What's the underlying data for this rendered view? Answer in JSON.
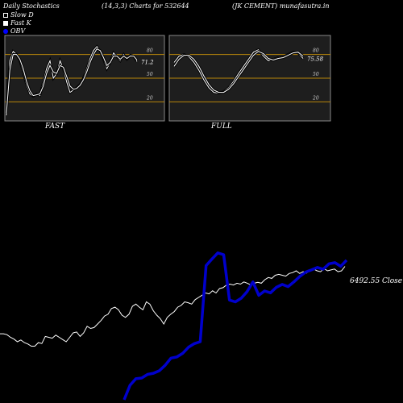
{
  "header": {
    "title": "Daily Stochastics",
    "params": "(14,3,3) Charts for 532644",
    "stock": "(JK CEMENT) munafasutra.in"
  },
  "legend": [
    {
      "label": "Slow  D",
      "icon": "hollow-square-icon"
    },
    {
      "label": "Fast K",
      "icon": "filled-square-icon"
    },
    {
      "label": "OBV",
      "icon": "blue-dot-icon",
      "color": "#0000ff"
    }
  ],
  "colors": {
    "background": "#000000",
    "panel_bg": "#1e1e1e",
    "grid_line": "#b8860b",
    "stoch_line": "#ffffff",
    "obv_line": "#0000cc",
    "price_line": "#ffffff"
  },
  "chart_data": [
    {
      "type": "line",
      "panel": "FAST",
      "ylim": [
        0,
        100
      ],
      "yticks": [
        20,
        50,
        80
      ],
      "last_value_label": "71.2",
      "series": [
        {
          "name": "Fast K",
          "values": [
            3,
            72,
            84,
            80,
            72,
            58,
            42,
            30,
            27,
            30,
            28,
            45,
            62,
            72,
            50,
            56,
            72,
            62,
            45,
            32,
            35,
            38,
            42,
            50,
            62,
            75,
            85,
            90,
            84,
            74,
            62,
            70,
            82,
            77,
            72,
            80,
            74,
            79,
            78,
            71
          ]
        },
        {
          "name": "Slow  D",
          "values": [
            6,
            60,
            80,
            80,
            74,
            62,
            46,
            34,
            28,
            29,
            30,
            40,
            56,
            66,
            58,
            56,
            66,
            64,
            52,
            40,
            36,
            37,
            41,
            48,
            58,
            70,
            80,
            87,
            85,
            76,
            66,
            70,
            78,
            78,
            74,
            78,
            75,
            78,
            78,
            73
          ]
        }
      ]
    },
    {
      "type": "line",
      "panel": "FULL",
      "ylim": [
        0,
        100
      ],
      "yticks": [
        20,
        50,
        80
      ],
      "last_value_label": "75.58",
      "series": [
        {
          "name": "Fast K",
          "values": [
            70,
            78,
            80,
            77,
            70,
            60,
            48,
            38,
            32,
            31,
            33,
            38,
            46,
            56,
            65,
            74,
            83,
            86,
            78,
            72,
            74,
            76,
            77,
            80,
            83,
            82,
            75
          ]
        },
        {
          "name": "Slow  D",
          "values": [
            65,
            74,
            79,
            79,
            74,
            65,
            53,
            42,
            35,
            32,
            32,
            36,
            43,
            52,
            61,
            70,
            79,
            84,
            81,
            75,
            73,
            75,
            76,
            79,
            82,
            83,
            78
          ]
        }
      ]
    },
    {
      "type": "line",
      "panel": "OBV",
      "last_value_label": "6492.55",
      "close_label": "Close",
      "series": [
        {
          "name": "OBV",
          "values": [
            0,
            40,
            58,
            60,
            70,
            73,
            80,
            95,
            115,
            118,
            128,
            145,
            155,
            160,
            370,
            388,
            405,
            400,
            275,
            270,
            280,
            298,
            325,
            288,
            300,
            295,
            310,
            318,
            312,
            325,
            340,
            352,
            358,
            365,
            360,
            375,
            378,
            368,
            385
          ]
        },
        {
          "name": "Close",
          "values": [
            58,
            58,
            56,
            50,
            46,
            40,
            44,
            38,
            35,
            30,
            30,
            38,
            36,
            52,
            50,
            48,
            55,
            50,
            45,
            40,
            50,
            60,
            62,
            52,
            60,
            75,
            70,
            72,
            80,
            88,
            98,
            102,
            115,
            118,
            112,
            100,
            95,
            102,
            120,
            125,
            118,
            112,
            130,
            125,
            110,
            100,
            92,
            80,
            95,
            102,
            108,
            118,
            122,
            130,
            128,
            125,
            135,
            140,
            145,
            150,
            148,
            155,
            150,
            160,
            162,
            168,
            170,
            168,
            172,
            170,
            175,
            172,
            168,
            172,
            174,
            172,
            180,
            185,
            183,
            190,
            192,
            190,
            188,
            194,
            196,
            200,
            194,
            198,
            195,
            202,
            204,
            200,
            198,
            205,
            200,
            202,
            204,
            198,
            200,
            210
          ]
        }
      ]
    }
  ],
  "panels": {
    "fast_label": "FAST",
    "full_label": "FULL"
  }
}
